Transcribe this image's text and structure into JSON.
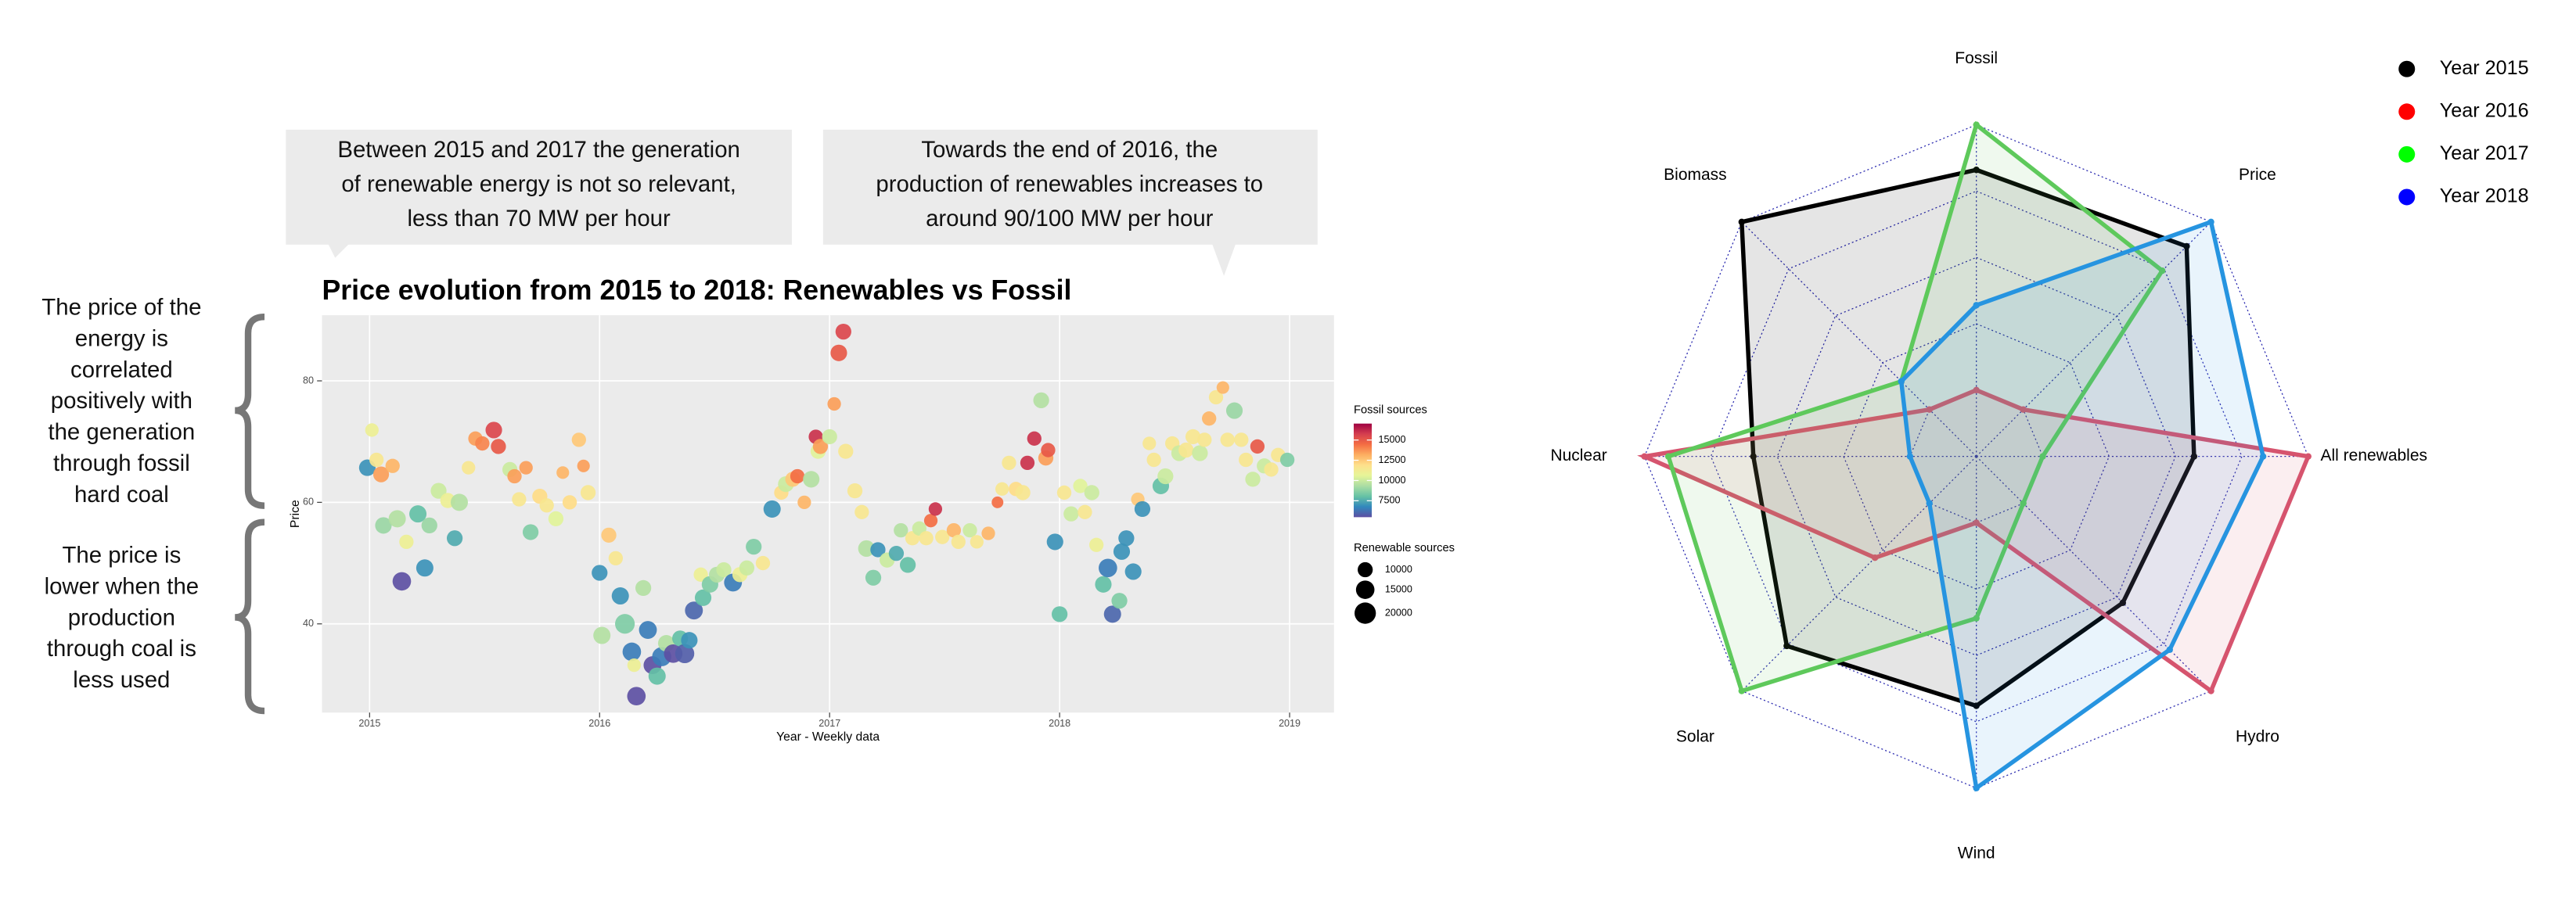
{
  "chart_data": [
    {
      "type": "scatter",
      "title": "Price evolution from 2015 to 2018: Renewables vs Fossil",
      "xlabel": "Year - Weekly data",
      "ylabel": "Price",
      "x": [
        2014.99,
        2015.01,
        2015.03,
        2015.05,
        2015.06,
        2015.1,
        2015.12,
        2015.14,
        2015.16,
        2015.21,
        2015.24,
        2015.26,
        2015.3,
        2015.34,
        2015.37,
        2015.39,
        2015.43,
        2015.46,
        2015.49,
        2015.54,
        2015.56,
        2015.61,
        2015.63,
        2015.65,
        2015.68,
        2015.7,
        2015.74,
        2015.77,
        2015.81,
        2015.84,
        2015.87,
        2015.91,
        2015.93,
        2015.95,
        2016.0,
        2016.01,
        2016.04,
        2016.07,
        2016.09,
        2016.11,
        2016.14,
        2016.15,
        2016.16,
        2016.19,
        2016.21,
        2016.23,
        2016.25,
        2016.27,
        2016.29,
        2016.32,
        2016.35,
        2016.37,
        2016.39,
        2016.41,
        2016.44,
        2016.45,
        2016.48,
        2016.51,
        2016.54,
        2016.58,
        2016.61,
        2016.64,
        2016.67,
        2016.71,
        2016.75,
        2016.79,
        2016.81,
        2016.84,
        2016.86,
        2016.89,
        2016.92,
        2016.95,
        2016.94,
        2016.96,
        2017.0,
        2017.02,
        2017.04,
        2017.06,
        2017.07,
        2017.11,
        2017.14,
        2017.16,
        2017.19,
        2017.21,
        2017.25,
        2017.29,
        2017.31,
        2017.34,
        2017.36,
        2017.39,
        2017.42,
        2017.44,
        2017.46,
        2017.49,
        2017.54,
        2017.56,
        2017.61,
        2017.64,
        2017.69,
        2017.73,
        2017.75,
        2017.78,
        2017.81,
        2017.84,
        2017.86,
        2017.89,
        2017.92,
        2017.94,
        2017.95,
        2017.98,
        2018.0,
        2018.02,
        2018.05,
        2018.09,
        2018.11,
        2018.14,
        2018.16,
        2018.19,
        2018.21,
        2018.23,
        2018.26,
        2018.27,
        2018.29,
        2018.32,
        2018.34,
        2018.36,
        2018.39,
        2018.41,
        2018.44,
        2018.46,
        2018.49,
        2018.52,
        2018.55,
        2018.58,
        2018.61,
        2018.63,
        2018.65,
        2018.68,
        2018.71,
        2018.73,
        2018.76,
        2018.79,
        2018.81,
        2018.84,
        2018.86,
        2018.89,
        2018.92,
        2018.95,
        2018.99
      ],
      "y": [
        65.7,
        71.9,
        67,
        64.6,
        56.2,
        66,
        57.3,
        47,
        53.5,
        58.1,
        49.2,
        56.2,
        61.9,
        60.3,
        54.1,
        60,
        65.7,
        70.5,
        69.7,
        71.9,
        69.2,
        65.4,
        64.3,
        60.5,
        65.7,
        55.1,
        61,
        59.5,
        57.3,
        64.9,
        60,
        70.3,
        66,
        61.6,
        48.4,
        38.1,
        54.6,
        50.8,
        44.6,
        40,
        35.4,
        33.2,
        28.1,
        45.9,
        39,
        33.2,
        31.4,
        34.6,
        36.8,
        35.1,
        37.6,
        35.1,
        37.3,
        42.2,
        48.1,
        44.3,
        46.5,
        48.1,
        48.9,
        46.8,
        48.1,
        49.2,
        52.7,
        50,
        58.9,
        61.6,
        63,
        63.8,
        64.3,
        60,
        63.8,
        68.4,
        70.8,
        69.2,
        70.8,
        76.2,
        84.6,
        88.1,
        68.4,
        61.9,
        58.4,
        52.4,
        47.6,
        52.2,
        50.5,
        51.6,
        55.4,
        49.7,
        54.1,
        55.7,
        54.1,
        57,
        58.9,
        54.3,
        55.4,
        53.5,
        55.4,
        53.5,
        54.9,
        60,
        62.2,
        66.5,
        62.2,
        61.6,
        66.5,
        70.5,
        76.8,
        67.3,
        68.6,
        53.5,
        41.6,
        61.6,
        58.1,
        62.7,
        58.4,
        61.6,
        53,
        46.5,
        49.2,
        41.6,
        43.8,
        51.9,
        54.1,
        48.6,
        60.5,
        58.9,
        69.7,
        67,
        62.7,
        64.3,
        69.7,
        68.1,
        68.6,
        70.8,
        68.1,
        70.3,
        73.8,
        77.3,
        78.9,
        70.3,
        75.1,
        70.3,
        67,
        63.8,
        69.2,
        66,
        65.4,
        67.8,
        67
      ],
      "fossil": [
        7000,
        11000,
        11500,
        13500,
        9000,
        13000,
        9500,
        5500,
        11000,
        8000,
        7000,
        9000,
        10000,
        11000,
        7500,
        9500,
        11500,
        13500,
        14000,
        15500,
        15000,
        10000,
        13500,
        11500,
        13500,
        8500,
        12000,
        11500,
        10500,
        13000,
        12000,
        12500,
        13500,
        11500,
        7000,
        9500,
        12500,
        11500,
        7000,
        8500,
        6500,
        11000,
        5500,
        9500,
        6500,
        5500,
        8000,
        6500,
        9500,
        5500,
        8000,
        5800,
        7000,
        6000,
        11000,
        8000,
        8500,
        9500,
        10000,
        6500,
        11000,
        10000,
        8500,
        11500,
        7000,
        12000,
        10000,
        12500,
        14500,
        13000,
        9500,
        10500,
        16000,
        13500,
        10000,
        13500,
        15000,
        15500,
        11500,
        11500,
        11500,
        9500,
        8500,
        7000,
        10000,
        7500,
        9500,
        8000,
        11500,
        10000,
        11500,
        14500,
        16000,
        11500,
        13000,
        11500,
        10000,
        11500,
        13000,
        14500,
        11500,
        11500,
        12000,
        11500,
        16000,
        16000,
        9500,
        13500,
        15000,
        7000,
        8000,
        11500,
        10000,
        10500,
        11500,
        10000,
        11000,
        8000,
        6500,
        6000,
        8500,
        7000,
        7000,
        7000,
        12500,
        7000,
        11500,
        11500,
        8000,
        10000,
        11500,
        10000,
        11500,
        11500,
        10000,
        11500,
        13000,
        11500,
        13000,
        11500,
        9000,
        11500,
        11500,
        10000,
        15000,
        10000,
        11500,
        11500,
        8500
      ],
      "renewable": [
        12000,
        8000,
        9000,
        11000,
        12000,
        9000,
        13000,
        15000,
        9000,
        13000,
        13000,
        11000,
        11000,
        10000,
        11000,
        13000,
        8000,
        9000,
        9000,
        12000,
        10000,
        10000,
        9000,
        9000,
        8000,
        11000,
        10000,
        9000,
        10000,
        7000,
        9000,
        9000,
        7000,
        10000,
        11000,
        13000,
        10000,
        9000,
        13000,
        17000,
        15000,
        8000,
        15000,
        11000,
        14000,
        14000,
        13000,
        16000,
        12000,
        15000,
        11000,
        16000,
        12000,
        14000,
        9000,
        12000,
        12000,
        11000,
        10000,
        14000,
        10000,
        10000,
        11000,
        9000,
        13000,
        9000,
        11000,
        10000,
        9000,
        8000,
        12000,
        10000,
        9000,
        10000,
        10000,
        8000,
        12000,
        11000,
        10000,
        10000,
        9000,
        12000,
        11000,
        10000,
        10000,
        10000,
        9000,
        11000,
        9000,
        9000,
        9000,
        8000,
        8000,
        9000,
        9000,
        9000,
        9000,
        8000,
        8000,
        6000,
        8000,
        9000,
        9000,
        10000,
        9000,
        9000,
        11000,
        10000,
        9000,
        12000,
        11000,
        9000,
        10000,
        9000,
        9000,
        10000,
        9000,
        12000,
        15000,
        13000,
        11000,
        12000,
        11000,
        12000,
        8000,
        11000,
        8000,
        9000,
        12000,
        11000,
        9000,
        11000,
        10000,
        10000,
        11000,
        9000,
        9000,
        9000,
        7000,
        9000,
        12000,
        9000,
        9000,
        10000,
        9000,
        10000,
        9000,
        9000,
        9000
      ],
      "xlim": [
        2014.793,
        2019.193
      ],
      "xticks": [
        2015,
        2016,
        2017,
        2018,
        2019
      ],
      "ylim": [
        25.4,
        90.8
      ],
      "yticks": [
        40,
        60,
        80
      ],
      "grid": true,
      "colormap": [
        "#5e4fa2",
        "#3288bd",
        "#66c2a5",
        "#abdda4",
        "#e6f598",
        "#fee08b",
        "#fdae61",
        "#f46d43",
        "#d53e4f",
        "#9e0142"
      ],
      "color_legend": {
        "title": "Fossil sources",
        "lim": [
          5470,
          17030
        ],
        "ticks": [
          7500,
          10000,
          12500,
          15000
        ]
      },
      "size_legend": {
        "title": "Renewable sources",
        "ticks": [
          10000,
          15000,
          20000
        ]
      },
      "annotations": [
        {
          "lines": [
            "Between 2015 and 2017 the generation",
            "of renewable energy is not so relevant,",
            "less than 70 MW per hour"
          ]
        },
        {
          "lines": [
            "Towards the end of 2016, the",
            "production of renewables increases  to",
            "around 90/100 MW per hour"
          ]
        }
      ],
      "side_notes": [
        {
          "lines": [
            "The price of the",
            "energy is",
            "correlated",
            "positively with",
            "the generation",
            "through fossil",
            "hard coal"
          ]
        },
        {
          "lines": [
            "The price is",
            "lower when the",
            "production",
            "through coal is",
            "less used"
          ]
        }
      ]
    },
    {
      "type": "radar",
      "axes": [
        "Fossil",
        "Price",
        "All renewables",
        "Hydro",
        "Wind",
        "Solar",
        "Nuclear",
        "Biomass"
      ],
      "rlim": [
        0,
        1
      ],
      "rticks": [
        0,
        0.25,
        0.5,
        0.75,
        1
      ],
      "legend": "top-right",
      "series": [
        {
          "name": "Year 2015",
          "color": "#000000",
          "legend_color": "#000000",
          "values": [
            0.83,
            0.87,
            0.57,
            0.53,
            0.69,
            0.76,
            0.59,
            1
          ]
        },
        {
          "name": "Year 2016",
          "color": "#d6546e",
          "legend_color": "#ff0000",
          "values": [
            0,
            0,
            1,
            1,
            0,
            0.29,
            1,
            0
          ]
        },
        {
          "name": "Year 2017",
          "color": "#5ec95b",
          "legend_color": "#00ff00",
          "values": [
            1,
            0.74,
            0,
            0,
            0.36,
            1,
            0.91,
            0.15
          ]
        },
        {
          "name": "Year 2018",
          "color": "#2694e0",
          "legend_color": "#0000ff",
          "values": [
            0.32,
            1,
            0.83,
            0.78,
            1,
            0,
            0,
            0.15
          ]
        }
      ]
    }
  ]
}
